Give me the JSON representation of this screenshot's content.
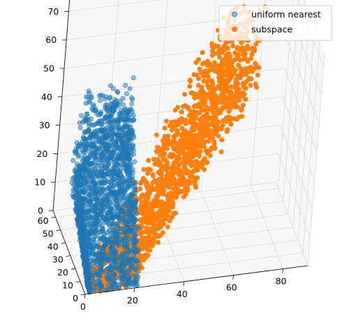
{
  "chart_data": {
    "type": "scatter",
    "projection": "3d",
    "title": "",
    "xlabel": "",
    "ylabel": "",
    "zlabel": "",
    "xlim": [
      0,
      90
    ],
    "ylim": [
      0,
      65
    ],
    "zlim": [
      0,
      75
    ],
    "x_ticks": [
      0,
      20,
      40,
      60,
      80
    ],
    "y_ticks": [
      0,
      10,
      20,
      30,
      40,
      50,
      60
    ],
    "z_ticks": [
      0,
      10,
      20,
      30,
      40,
      50,
      60,
      70
    ],
    "grid": true,
    "legend_position": "top-right",
    "series": [
      {
        "name": "uniform nearest",
        "color": "#1f77b4",
        "opacity": 0.5,
        "x_range": [
          2,
          42
        ],
        "y_range": [
          1,
          62
        ],
        "z_range": [
          0,
          45
        ],
        "apex": [
          40,
          61,
          45
        ]
      },
      {
        "name": "subspace",
        "color": "#ff7f0e",
        "opacity": 1.0,
        "x_range": [
          2,
          85
        ],
        "y_range": [
          1,
          64
        ],
        "z_range": [
          0,
          68
        ],
        "apex": [
          70,
          63,
          68
        ]
      }
    ]
  }
}
